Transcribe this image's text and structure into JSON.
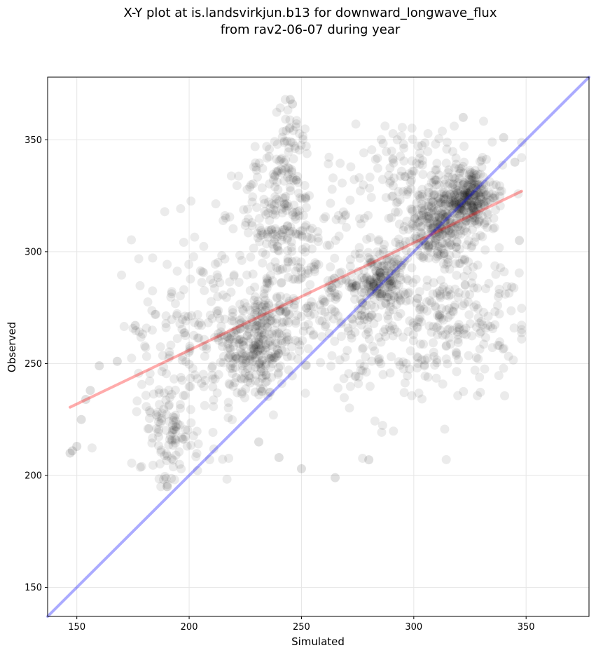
{
  "chart_data": {
    "type": "scatter",
    "title_line1": "X-Y plot at is.landsvirkjun.b13 for downward_longwave_flux",
    "title_line2": "from rav2-06-07 during year",
    "xlabel": "Simulated",
    "ylabel": "Observed",
    "xlim": [
      137,
      378
    ],
    "ylim": [
      137,
      378
    ],
    "xticks": [
      150,
      200,
      250,
      300,
      350
    ],
    "yticks": [
      150,
      200,
      250,
      300,
      350
    ],
    "grid": true,
    "point_color": "#000000",
    "point_alpha": 0.08,
    "series": [
      {
        "kind": "points",
        "clusters": [
          {
            "center": [
              230,
              258
            ],
            "spread": [
              8,
              12
            ],
            "count": 260
          },
          {
            "center": [
              285,
              287
            ],
            "spread": [
              6,
              7
            ],
            "count": 180
          },
          {
            "center": [
              312,
              312
            ],
            "spread": [
              8,
              9
            ],
            "count": 280
          },
          {
            "center": [
              325,
              325
            ],
            "spread": [
              6,
              7
            ],
            "count": 220
          },
          {
            "center": [
              240,
              318
            ],
            "spread": [
              9,
              14
            ],
            "count": 180
          },
          {
            "center": [
              205,
              265
            ],
            "spread": [
              15,
              25
            ],
            "count": 200
          },
          {
            "center": [
              190,
              220
            ],
            "spread": [
              6,
              14
            ],
            "count": 100
          },
          {
            "center": [
              255,
              280
            ],
            "spread": [
              15,
              20
            ],
            "count": 220
          },
          {
            "center": [
              320,
              275
            ],
            "spread": [
              14,
              16
            ],
            "count": 180
          },
          {
            "center": [
              295,
              260
            ],
            "spread": [
              15,
              20
            ],
            "count": 140
          },
          {
            "center": [
              300,
              335
            ],
            "spread": [
              20,
              12
            ],
            "count": 140
          },
          {
            "center": [
              245,
              350
            ],
            "spread": [
              5,
              8
            ],
            "count": 40
          }
        ],
        "outliers": [
          [
            147,
            210
          ],
          [
            148,
            211
          ],
          [
            150,
            213
          ],
          [
            152,
            225
          ],
          [
            154,
            234
          ],
          [
            156,
            238
          ],
          [
            160,
            249
          ],
          [
            168,
            251
          ],
          [
            176,
            267
          ],
          [
            265,
            199
          ],
          [
            280,
            207
          ],
          [
            250,
            203
          ],
          [
            240,
            208
          ],
          [
            231,
            215
          ],
          [
            245,
            368
          ],
          [
            246,
            366
          ],
          [
            322,
            360
          ],
          [
            347,
            305
          ],
          [
            345,
            340
          ],
          [
            340,
            351
          ]
        ]
      },
      {
        "name": "",
        "kind": "regression",
        "color": "#ff0000",
        "x": [
          147,
          348
        ],
        "y": [
          230.5,
          327
        ]
      },
      {
        "name": "",
        "kind": "one-to-one",
        "color": "#0000ff",
        "x": [
          137,
          378
        ],
        "y": [
          137,
          378
        ]
      }
    ]
  }
}
